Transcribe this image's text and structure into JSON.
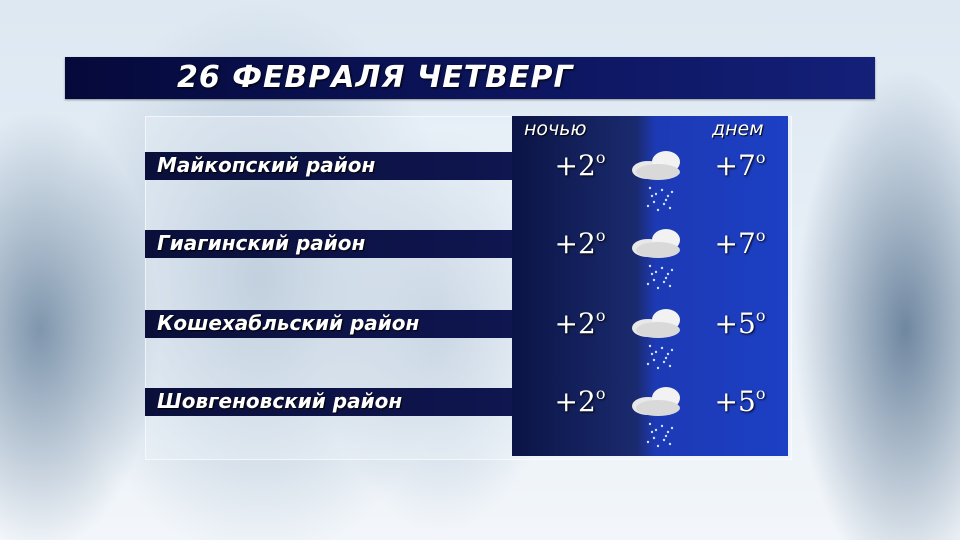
{
  "title": "26 ФЕВРАЛЯ ЧЕТВЕРГ",
  "headers": {
    "night": "ночью",
    "day": "днем"
  },
  "degree_symbol": "o",
  "rows": [
    {
      "district": "Майкопский район",
      "night": "+2",
      "day": "+7",
      "icon": "cloud-snow-icon"
    },
    {
      "district": "Гиагинский район",
      "night": "+2",
      "day": "+7",
      "icon": "cloud-snow-icon"
    },
    {
      "district": "Кошехабльский район",
      "night": "+2",
      "day": "+5",
      "icon": "cloud-snow-icon"
    },
    {
      "district": "Шовгеновский район",
      "night": "+2",
      "day": "+5",
      "icon": "cloud-snow-icon"
    }
  ],
  "colors": {
    "title_bar": "#0d1660",
    "night_column": "#0b1445",
    "day_column": "#1c3fc4"
  }
}
